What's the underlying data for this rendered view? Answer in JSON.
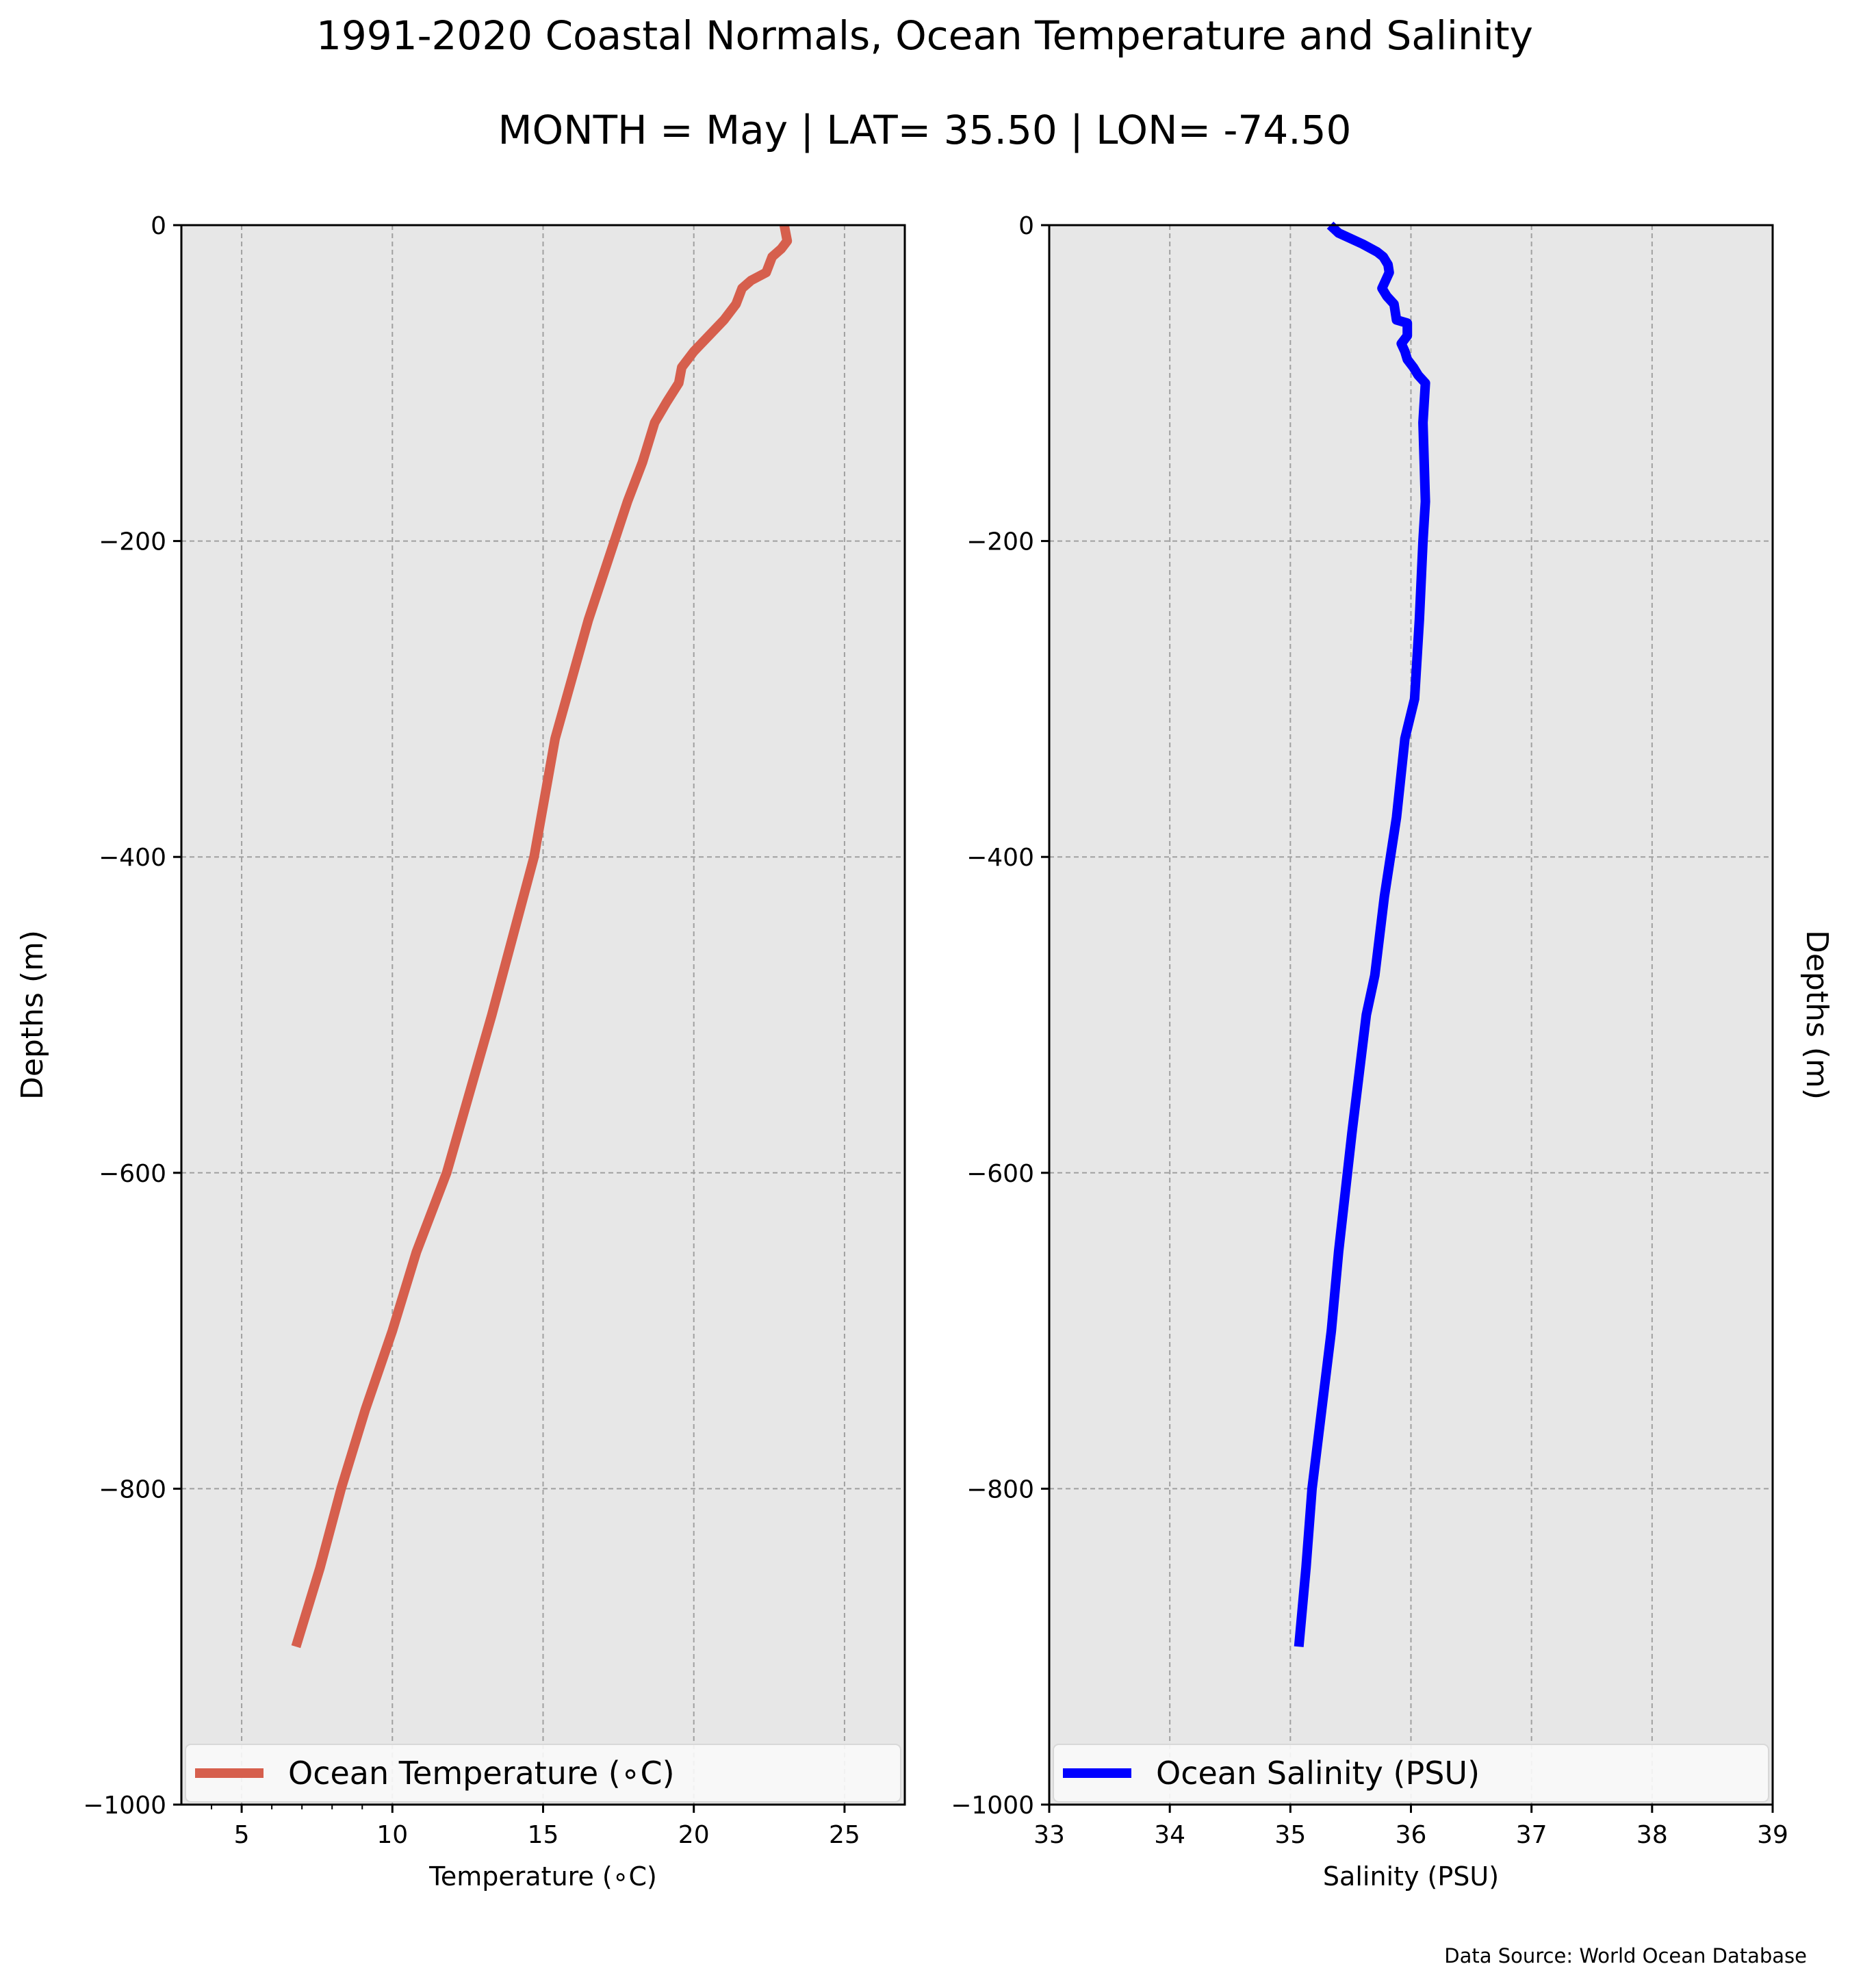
{
  "page": {
    "title": "1991-2020 Coastal Normals, Ocean Temperature and Salinity",
    "subtitle": "MONTH = May | LAT= 35.50 | LON= -74.50",
    "footer": "Data Source: World Ocean Database"
  },
  "chart_data": [
    {
      "type": "line",
      "xlabel": "Temperature (∘C)",
      "ylabel": "Depths (m)",
      "xlim": [
        3,
        27
      ],
      "ylim": [
        -1000,
        0
      ],
      "xticks": [
        5,
        10,
        15,
        20,
        25
      ],
      "yticks": [
        0,
        -200,
        -400,
        -600,
        -800,
        -1000
      ],
      "tick_labels_x": [
        "5",
        "10",
        "15",
        "20",
        "25"
      ],
      "tick_labels_y": [
        "0",
        "−200",
        "−400",
        "−600",
        "−800",
        "−1000"
      ],
      "grid": true,
      "legend_position": "bottom",
      "series": [
        {
          "name": "Ocean Temperature (∘C)",
          "color": "#d65f4d",
          "x": [
            23.0,
            23.1,
            22.9,
            22.6,
            22.4,
            21.9,
            21.6,
            21.5,
            21.4,
            21.0,
            20.5,
            20.0,
            19.6,
            19.5,
            19.1,
            18.7,
            18.3,
            17.8,
            16.5,
            15.4,
            14.7,
            14.0,
            13.3,
            11.8,
            10.8,
            10.0,
            9.1,
            8.3,
            7.6,
            6.8
          ],
          "y": [
            0,
            -10,
            -15,
            -20,
            -30,
            -35,
            -40,
            -45,
            -50,
            -60,
            -70,
            -80,
            -90,
            -100,
            -112,
            -125,
            -150,
            -175,
            -250,
            -325,
            -400,
            -450,
            -500,
            -600,
            -650,
            -700,
            -750,
            -800,
            -850,
            -900
          ]
        }
      ]
    },
    {
      "type": "line",
      "xlabel": "Salinity (PSU)",
      "ylabel": "Depths (m)",
      "xlim": [
        33,
        39
      ],
      "ylim": [
        -1000,
        0
      ],
      "xticks": [
        33,
        34,
        35,
        36,
        37,
        38,
        39
      ],
      "yticks": [
        0,
        -200,
        -400,
        -600,
        -800,
        -1000
      ],
      "tick_labels_x": [
        "33",
        "34",
        "35",
        "36",
        "37",
        "38",
        "39"
      ],
      "tick_labels_y": [
        "0",
        "−200",
        "−400",
        "−600",
        "−800",
        "−1000"
      ],
      "grid": true,
      "legend_position": "bottom",
      "series": [
        {
          "name": "Ocean Salinity (PSU)",
          "color": "#0000ff",
          "x": [
            35.33,
            35.4,
            35.6,
            35.72,
            35.77,
            35.81,
            35.82,
            35.79,
            35.76,
            35.8,
            35.86,
            35.88,
            35.97,
            35.97,
            35.92,
            35.95,
            35.97,
            36.02,
            36.06,
            36.12,
            36.1,
            36.12,
            36.1,
            36.07,
            36.03,
            35.95,
            35.88,
            35.78,
            35.7,
            35.63,
            35.51,
            35.4,
            35.34,
            35.26,
            35.18,
            35.13,
            35.07
          ],
          "y": [
            0,
            -5,
            -12,
            -17,
            -20,
            -25,
            -30,
            -35,
            -40,
            -45,
            -50,
            -60,
            -62,
            -70,
            -75,
            -80,
            -85,
            -90,
            -95,
            -100,
            -125,
            -175,
            -200,
            -250,
            -300,
            -325,
            -375,
            -425,
            -475,
            -500,
            -575,
            -650,
            -700,
            -750,
            -800,
            -850,
            -900
          ]
        }
      ]
    }
  ]
}
